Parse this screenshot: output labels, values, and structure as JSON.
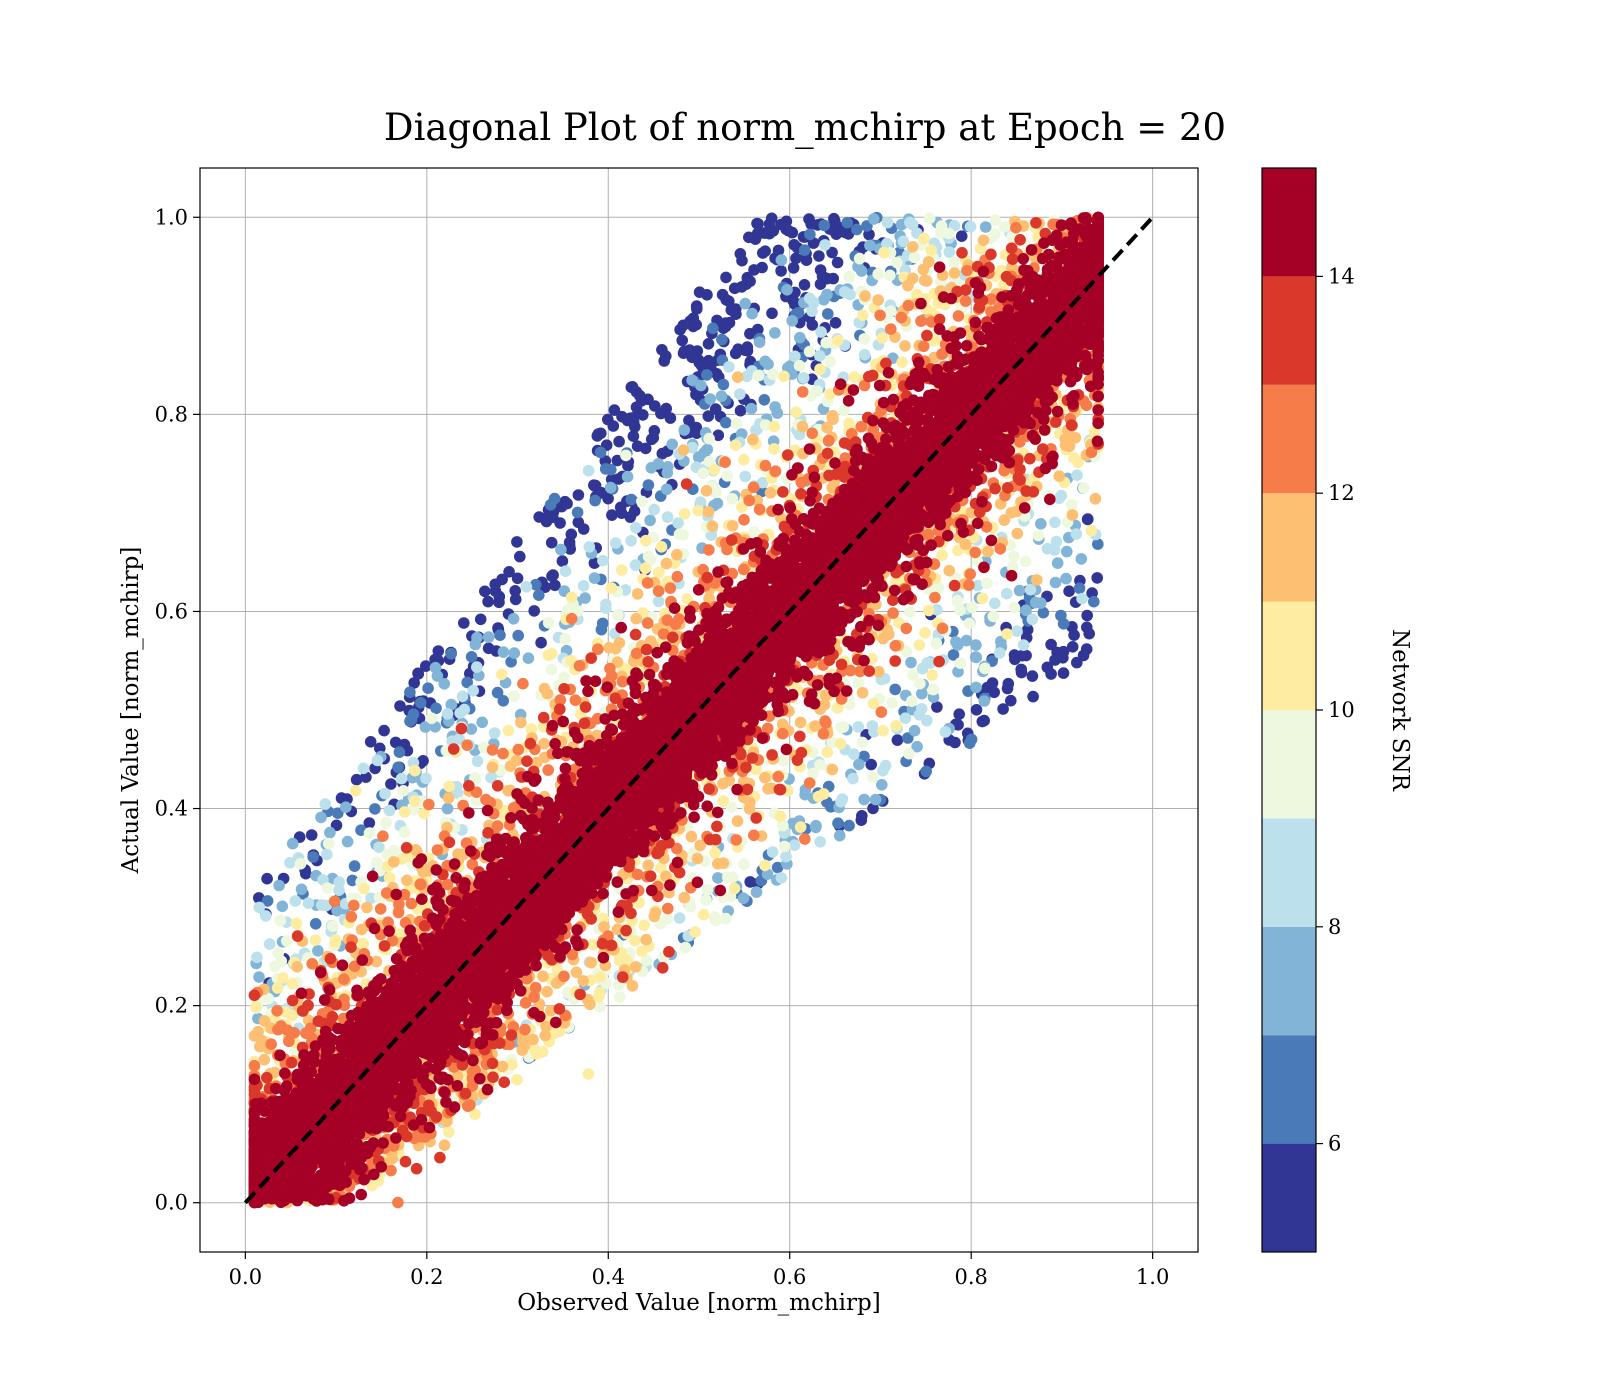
{
  "chart_data": {
    "type": "scatter",
    "title": "Diagonal Plot of norm_mchirp at Epoch = 20",
    "xlabel": "Observed Value [norm_mchirp]",
    "ylabel": "Actual Value [norm_mchirp]",
    "xlim": [
      -0.05,
      1.05
    ],
    "ylim": [
      -0.05,
      1.05
    ],
    "xticks": [
      0.0,
      0.2,
      0.4,
      0.6,
      0.8,
      1.0
    ],
    "yticks": [
      0.0,
      0.2,
      0.4,
      0.6,
      0.8,
      1.0
    ],
    "xtick_labels": [
      "0.0",
      "0.2",
      "0.4",
      "0.6",
      "0.8",
      "1.0"
    ],
    "ytick_labels": [
      "0.0",
      "0.2",
      "0.4",
      "0.6",
      "0.8",
      "1.0"
    ],
    "grid": true,
    "reference_line": {
      "x": [
        0.0,
        1.0
      ],
      "y": [
        0.0,
        1.0
      ],
      "style": "dashed",
      "color": "#000000"
    },
    "colorbar": {
      "label": "Network SNR",
      "range": [
        5,
        15
      ],
      "ticks": [
        6,
        8,
        10,
        12,
        14
      ],
      "tick_labels": [
        "6",
        "8",
        "10",
        "12",
        "14"
      ],
      "bins": [
        {
          "from": 5,
          "to": 6,
          "color": "#313695"
        },
        {
          "from": 6,
          "to": 7,
          "color": "#4a7ab7"
        },
        {
          "from": 7,
          "to": 8,
          "color": "#81b4d6"
        },
        {
          "from": 8,
          "to": 9,
          "color": "#bde1ec"
        },
        {
          "from": 9,
          "to": 10,
          "color": "#eef8df"
        },
        {
          "from": 10,
          "to": 11,
          "color": "#feeda1"
        },
        {
          "from": 11,
          "to": 12,
          "color": "#fdbf71"
        },
        {
          "from": 12,
          "to": 13,
          "color": "#f67c4a"
        },
        {
          "from": 13,
          "to": 14,
          "color": "#da382a"
        },
        {
          "from": 14,
          "to": 15,
          "color": "#a50026"
        }
      ]
    },
    "distribution": {
      "observed_range": [
        0.0,
        0.94
      ],
      "actual_range": [
        0.0,
        1.0
      ],
      "high_snr_near_diagonal": true,
      "low_snr_spread": true
    }
  }
}
